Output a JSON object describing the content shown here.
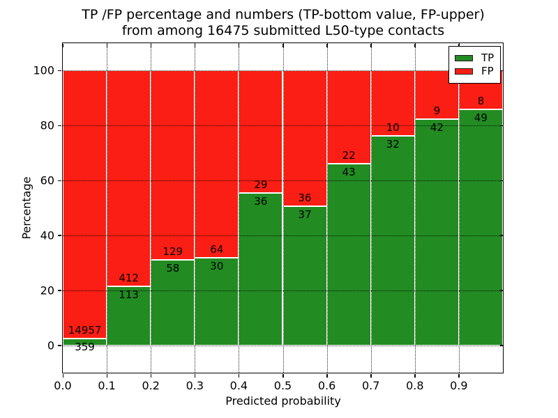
{
  "title": {
    "line1": "TP /FP percentage and numbers (TP-bottom value, FP-upper)",
    "line2": "from among 16475 submitted L50-type contacts"
  },
  "axes": {
    "xlabel": "Predicted probability",
    "ylabel": "Percentage",
    "x_tick_labels": [
      "0.0",
      "0.1",
      "0.2",
      "0.3",
      "0.4",
      "0.5",
      "0.6",
      "0.7",
      "0.8",
      "0.9"
    ],
    "y_tick_labels": [
      "0",
      "20",
      "40",
      "60",
      "80",
      "100"
    ],
    "y_tick_values": [
      0,
      20,
      40,
      60,
      80,
      100
    ],
    "x_grid_values": [
      0.1,
      0.2,
      0.3,
      0.4,
      0.5,
      0.6,
      0.7,
      0.8,
      0.9
    ]
  },
  "legend": {
    "items": [
      {
        "label": "TP",
        "color": "#228b22"
      },
      {
        "label": "FP",
        "color": "#fa1e14"
      }
    ]
  },
  "chart_data": {
    "type": "bar",
    "stacked": true,
    "normalized_to_percent": true,
    "title": "TP /FP percentage and numbers (TP-bottom value, FP-upper) from among 16475 submitted L50-type contacts",
    "xlabel": "Predicted probability",
    "ylabel": "Percentage",
    "xlim": [
      0.0,
      1.0
    ],
    "ylim": [
      -10,
      110
    ],
    "grid": true,
    "legend_position": "upper right",
    "total_contacts": 16475,
    "bin_width": 0.1,
    "categories": [
      "0.0-0.1",
      "0.1-0.2",
      "0.2-0.3",
      "0.3-0.4",
      "0.4-0.5",
      "0.5-0.6",
      "0.6-0.7",
      "0.7-0.8",
      "0.8-0.9",
      "0.9-1.0"
    ],
    "series": [
      {
        "name": "TP",
        "color": "#228b22",
        "counts": [
          359,
          113,
          58,
          30,
          36,
          37,
          43,
          32,
          42,
          49
        ]
      },
      {
        "name": "FP",
        "color": "#fa1e14",
        "counts": [
          14957,
          412,
          129,
          64,
          29,
          36,
          22,
          10,
          9,
          8
        ]
      }
    ],
    "tp_percent_of_bin": [
      2.34,
      21.52,
      31.02,
      31.91,
      55.38,
      50.68,
      66.15,
      76.19,
      82.35,
      85.96
    ]
  }
}
